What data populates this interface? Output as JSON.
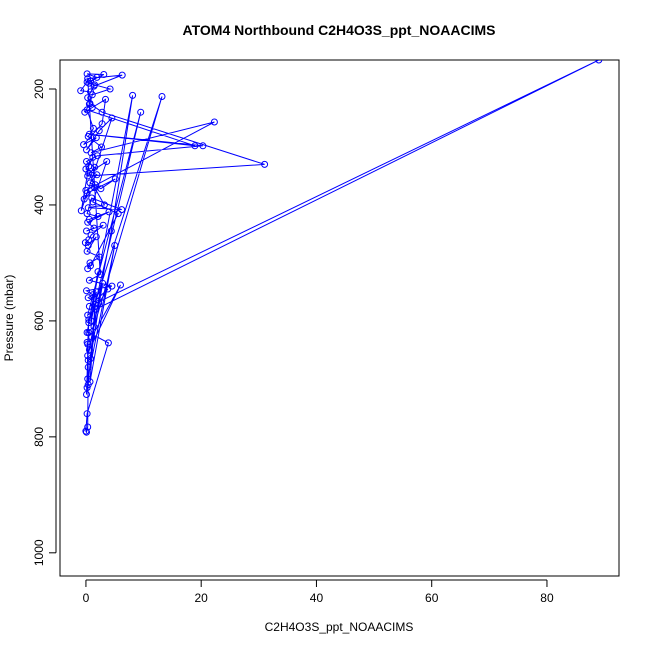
{
  "chart_data": {
    "type": "line",
    "title": "ATOM4 Northbound C2H4O3S_ppt_NOAACIMS",
    "xlabel": "C2H4O3S_ppt_NOAACIMS",
    "ylabel": "Pressure (mbar)",
    "xlim": [
      -4.5,
      92.5
    ],
    "ylim": [
      1040,
      150
    ],
    "y_reversed": true,
    "x_ticks": [
      0,
      20,
      40,
      60,
      80
    ],
    "y_ticks": [
      200,
      400,
      600,
      800,
      1000
    ],
    "grid": false,
    "legend": "none",
    "series": [
      {
        "color": "#0000ff",
        "marker": "open-circle",
        "x": [
          0.8,
          -0.9,
          0.2,
          1.5,
          0.3,
          0.6,
          -0.2,
          1.1,
          3.4,
          2.8,
          -0.4,
          1.8,
          0.1,
          2.3,
          4.5,
          -0.8,
          0.5,
          1.2,
          0.0,
          1.9,
          0.7,
          2.6,
          5.1,
          0.2,
          -0.3,
          1.5,
          3.2,
          0.4,
          6.2,
          1.0,
          0.2,
          2.1,
          0.6,
          4.0,
          0.3,
          1.4,
          0.1,
          3.0,
          0.9,
          0.5,
          -0.1,
          0.4,
          1.8,
          0.2,
          2.4,
          0.7,
          0.3,
          0.8,
          5.6,
          1.2,
          3.6,
          0.5,
          1.6,
          0.0,
          22.3,
          0.9,
          2.7,
          0.4,
          1.3,
          0.2,
          18.9,
          0.6,
          20.3,
          2.0,
          0.1,
          1.5,
          0.3,
          31.0,
          2.8,
          0.7,
          1.1,
          4.2,
          0.5,
          1.9,
          0.2,
          3.1,
          0.8,
          1.4,
          6.3,
          0.3,
          2.5,
          0.6,
          4.5,
          0.1,
          1.2,
          0.4,
          2.2,
          3.8,
          0.6,
          89.0,
          1.7,
          0.3,
          9.5,
          0.9,
          2.1,
          0.5,
          13.2,
          1.4,
          0.2,
          8.1,
          4.4,
          1.0,
          6.0,
          0.6,
          0.3,
          2.9,
          0.8,
          0.4,
          0.3,
          5.0,
          0.7,
          1.8,
          0.4,
          0.2,
          0.1,
          0.5,
          0.3,
          0.2,
          0.4,
          0.3,
          0.1,
          0.0,
          0.2,
          3.9,
          0.5
        ],
        "y": [
          205,
          203,
          188,
          193,
          215,
          226,
          240,
          232,
          218,
          260,
          296,
          284,
          305,
          272,
          250,
          410,
          333,
          318,
          338,
          348,
          362,
          372,
          355,
          380,
          390,
          370,
          400,
          405,
          408,
          388,
          415,
          420,
          425,
          412,
          430,
          440,
          445,
          435,
          452,
          460,
          465,
          470,
          455,
          480,
          490,
          500,
          510,
          505,
          415,
          395,
          325,
          345,
          365,
          375,
          257,
          310,
          300,
          282,
          268,
          236,
          298,
          278,
          298,
          315,
          325,
          335,
          350,
          330,
          240,
          225,
          210,
          200,
          190,
          180,
          174,
          175,
          186,
          195,
          176,
          182,
          520,
          530,
          540,
          548,
          555,
          560,
          570,
          545,
          575,
          150,
          580,
          590,
          240,
          600,
          515,
          603,
          213,
          610,
          620,
          211,
          445,
          628,
          538,
          650,
          660,
          535,
          665,
          668,
          700,
          470,
          705,
          550,
          710,
          715,
          727,
          598,
          640,
          637,
          680,
          783,
          792,
          790,
          760,
          638,
          620
        ]
      }
    ]
  }
}
